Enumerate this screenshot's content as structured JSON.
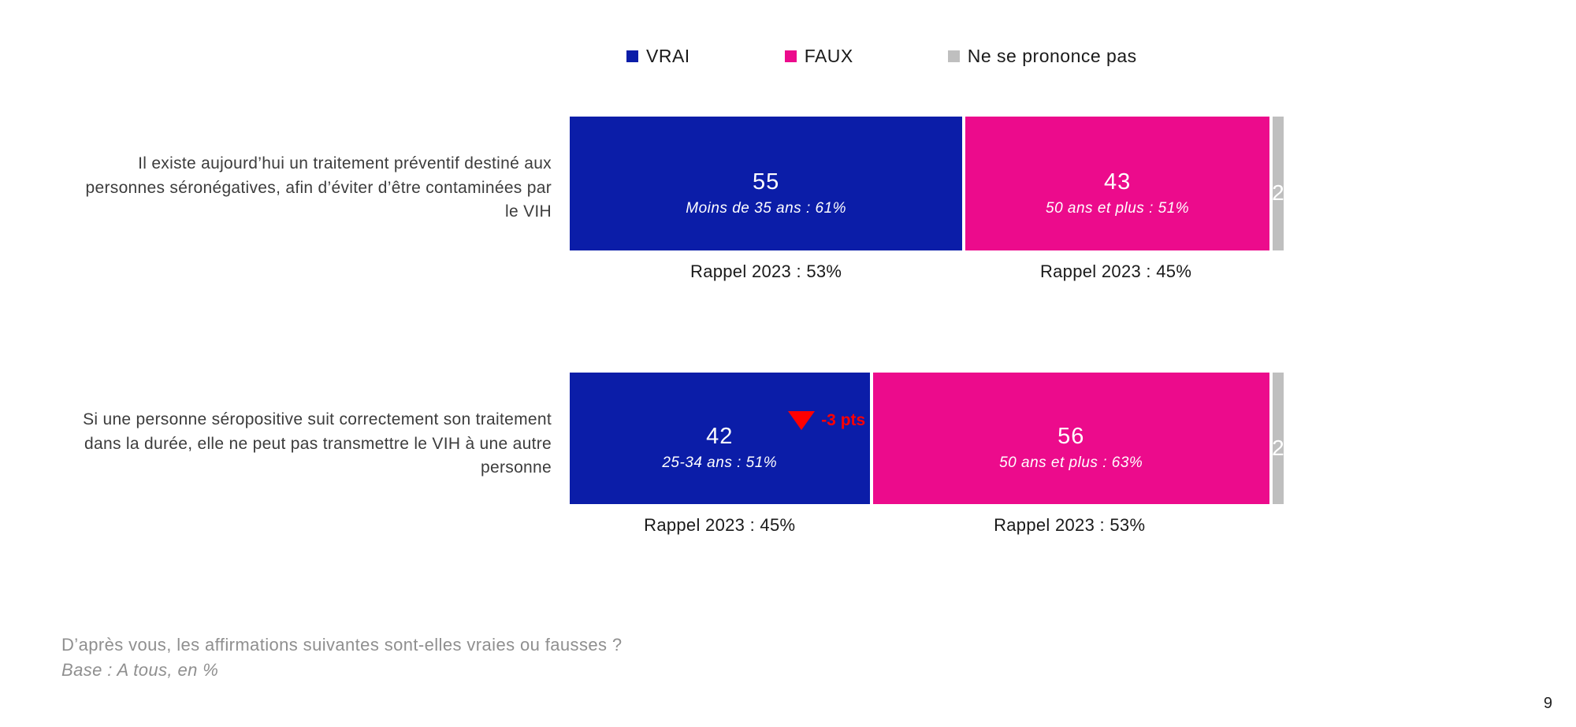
{
  "legend": {
    "items": [
      {
        "label": "VRAI",
        "color": "#0b1da8"
      },
      {
        "label": "FAUX",
        "color": "#ec0b8c"
      },
      {
        "label": "Ne se prononce pas",
        "color": "#bfbfbf"
      }
    ]
  },
  "chart_data": {
    "type": "bar",
    "orientation": "horizontal",
    "stacked": true,
    "unit": "%",
    "xlim": [
      0,
      100
    ],
    "series_names": [
      "VRAI",
      "FAUX",
      "Ne se prononce pas"
    ],
    "colors": {
      "vrai": "#0b1da8",
      "faux": "#ec0b8c",
      "nsp": "#bfbfbf",
      "delta": "#ff0000"
    },
    "rows": [
      {
        "statement": "Il existe aujourd’hui un traitement préventif destiné aux personnes séronégatives, afin d’éviter d’être contaminées par le VIH",
        "vrai": {
          "value": 55,
          "subgroup": "Moins de 35 ans : 61%",
          "rappel": "Rappel 2023 : 53%",
          "delta": ""
        },
        "faux": {
          "value": 43,
          "subgroup": "50 ans et plus : 51%",
          "rappel": "Rappel 2023 : 45%"
        },
        "nsp": {
          "value": 2
        }
      },
      {
        "statement": "Si une personne séropositive suit correctement son traitement dans la durée, elle ne peut pas transmettre le VIH à une autre personne",
        "vrai": {
          "value": 42,
          "subgroup": "25-34 ans : 51%",
          "rappel": "Rappel 2023 : 45%",
          "delta": "-3 pts"
        },
        "faux": {
          "value": 56,
          "subgroup": "50 ans et plus : 63%",
          "rappel": "Rappel 2023 : 53%"
        },
        "nsp": {
          "value": 2
        }
      }
    ]
  },
  "footer": {
    "question": "D’après vous, les affirmations suivantes sont-elles vraies ou fausses ?",
    "base": "Base : A tous, en %"
  },
  "page": {
    "number": "9"
  }
}
